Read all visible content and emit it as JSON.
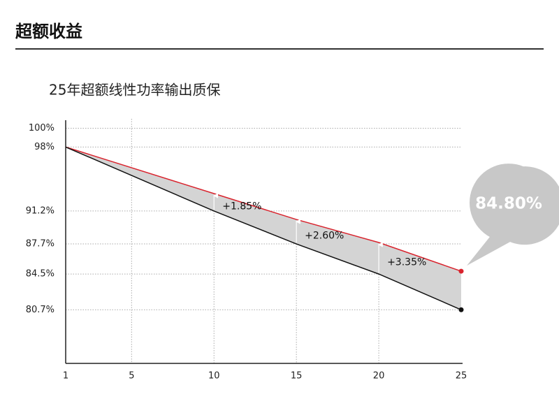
{
  "header": {
    "title": "超额收益"
  },
  "chart_data": {
    "type": "area-gap",
    "title": "25年超额线性功率输出质保",
    "x": [
      1,
      10,
      15,
      20,
      25
    ],
    "series": [
      {
        "color": "#d9232d",
        "values": [
          98,
          93.05,
          90.3,
          87.85,
          84.8
        ],
        "value_labels": [
          null,
          null,
          null,
          null,
          "84.80%"
        ]
      },
      {
        "color": "#111111",
        "values": [
          98,
          91.2,
          87.7,
          84.5,
          80.7
        ]
      }
    ],
    "fill_color": "#d4d4d4",
    "annotations": [
      {
        "x": 10,
        "text": "+1.85%"
      },
      {
        "x": 15,
        "text": "+2.60%"
      },
      {
        "x": 20,
        "text": "+3.35%"
      }
    ],
    "xlim": [
      1,
      25
    ],
    "xticks": [
      1,
      5,
      10,
      15,
      20,
      25
    ],
    "ylim": [
      75,
      101
    ],
    "yticks": [
      {
        "value": 100,
        "label": "100%"
      },
      {
        "value": 98,
        "label": "98%"
      },
      {
        "value": 91.2,
        "label": "91.2%"
      },
      {
        "value": 87.7,
        "label": "87.7%"
      },
      {
        "value": 84.5,
        "label": "84.5%"
      },
      {
        "value": 80.7,
        "label": "80.7%"
      }
    ],
    "grid": true
  }
}
